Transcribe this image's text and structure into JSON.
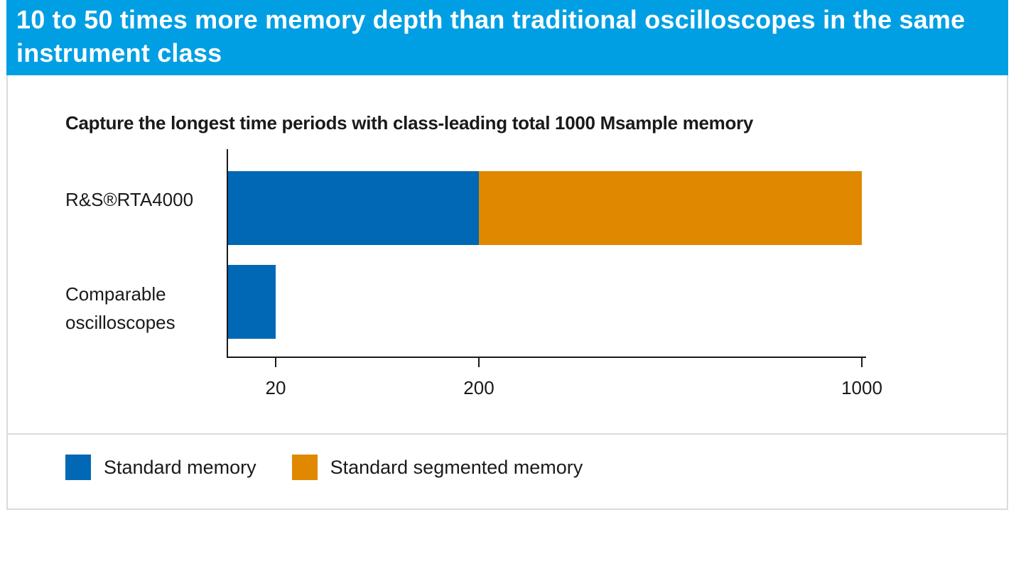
{
  "header": {
    "title": "10 to 50 times more memory depth than traditional oscilloscopes in the same instrument class"
  },
  "colors": {
    "header_bg": "#009fe3",
    "standard_memory": "#0068b4",
    "segmented_memory": "#df8800"
  },
  "chart_data": {
    "type": "bar",
    "orientation": "horizontal",
    "stacked": true,
    "title": "Capture the longest time periods with class-leading total 1000 Msample memory",
    "categories": [
      "R&S®RTA4000",
      "Comparable oscilloscopes"
    ],
    "category_lines": [
      [
        "R&S®RTA4000"
      ],
      [
        "Comparable",
        "oscilloscopes"
      ]
    ],
    "series": [
      {
        "name": "Standard memory",
        "color": "#0068b4",
        "values": [
          200,
          20
        ]
      },
      {
        "name": "Standard segmented memory",
        "color": "#df8800",
        "values": [
          800,
          0
        ]
      }
    ],
    "xticks": [
      20,
      200,
      1000
    ],
    "xtick_labels": [
      "20",
      "200",
      "1000"
    ],
    "xlim": [
      0,
      1000
    ],
    "scale": "piecewise",
    "grid": false,
    "legend_position": "bottom-left"
  },
  "legend": {
    "items": [
      {
        "label": "Standard memory",
        "color": "#0068b4"
      },
      {
        "label": "Standard segmented memory",
        "color": "#df8800"
      }
    ]
  }
}
